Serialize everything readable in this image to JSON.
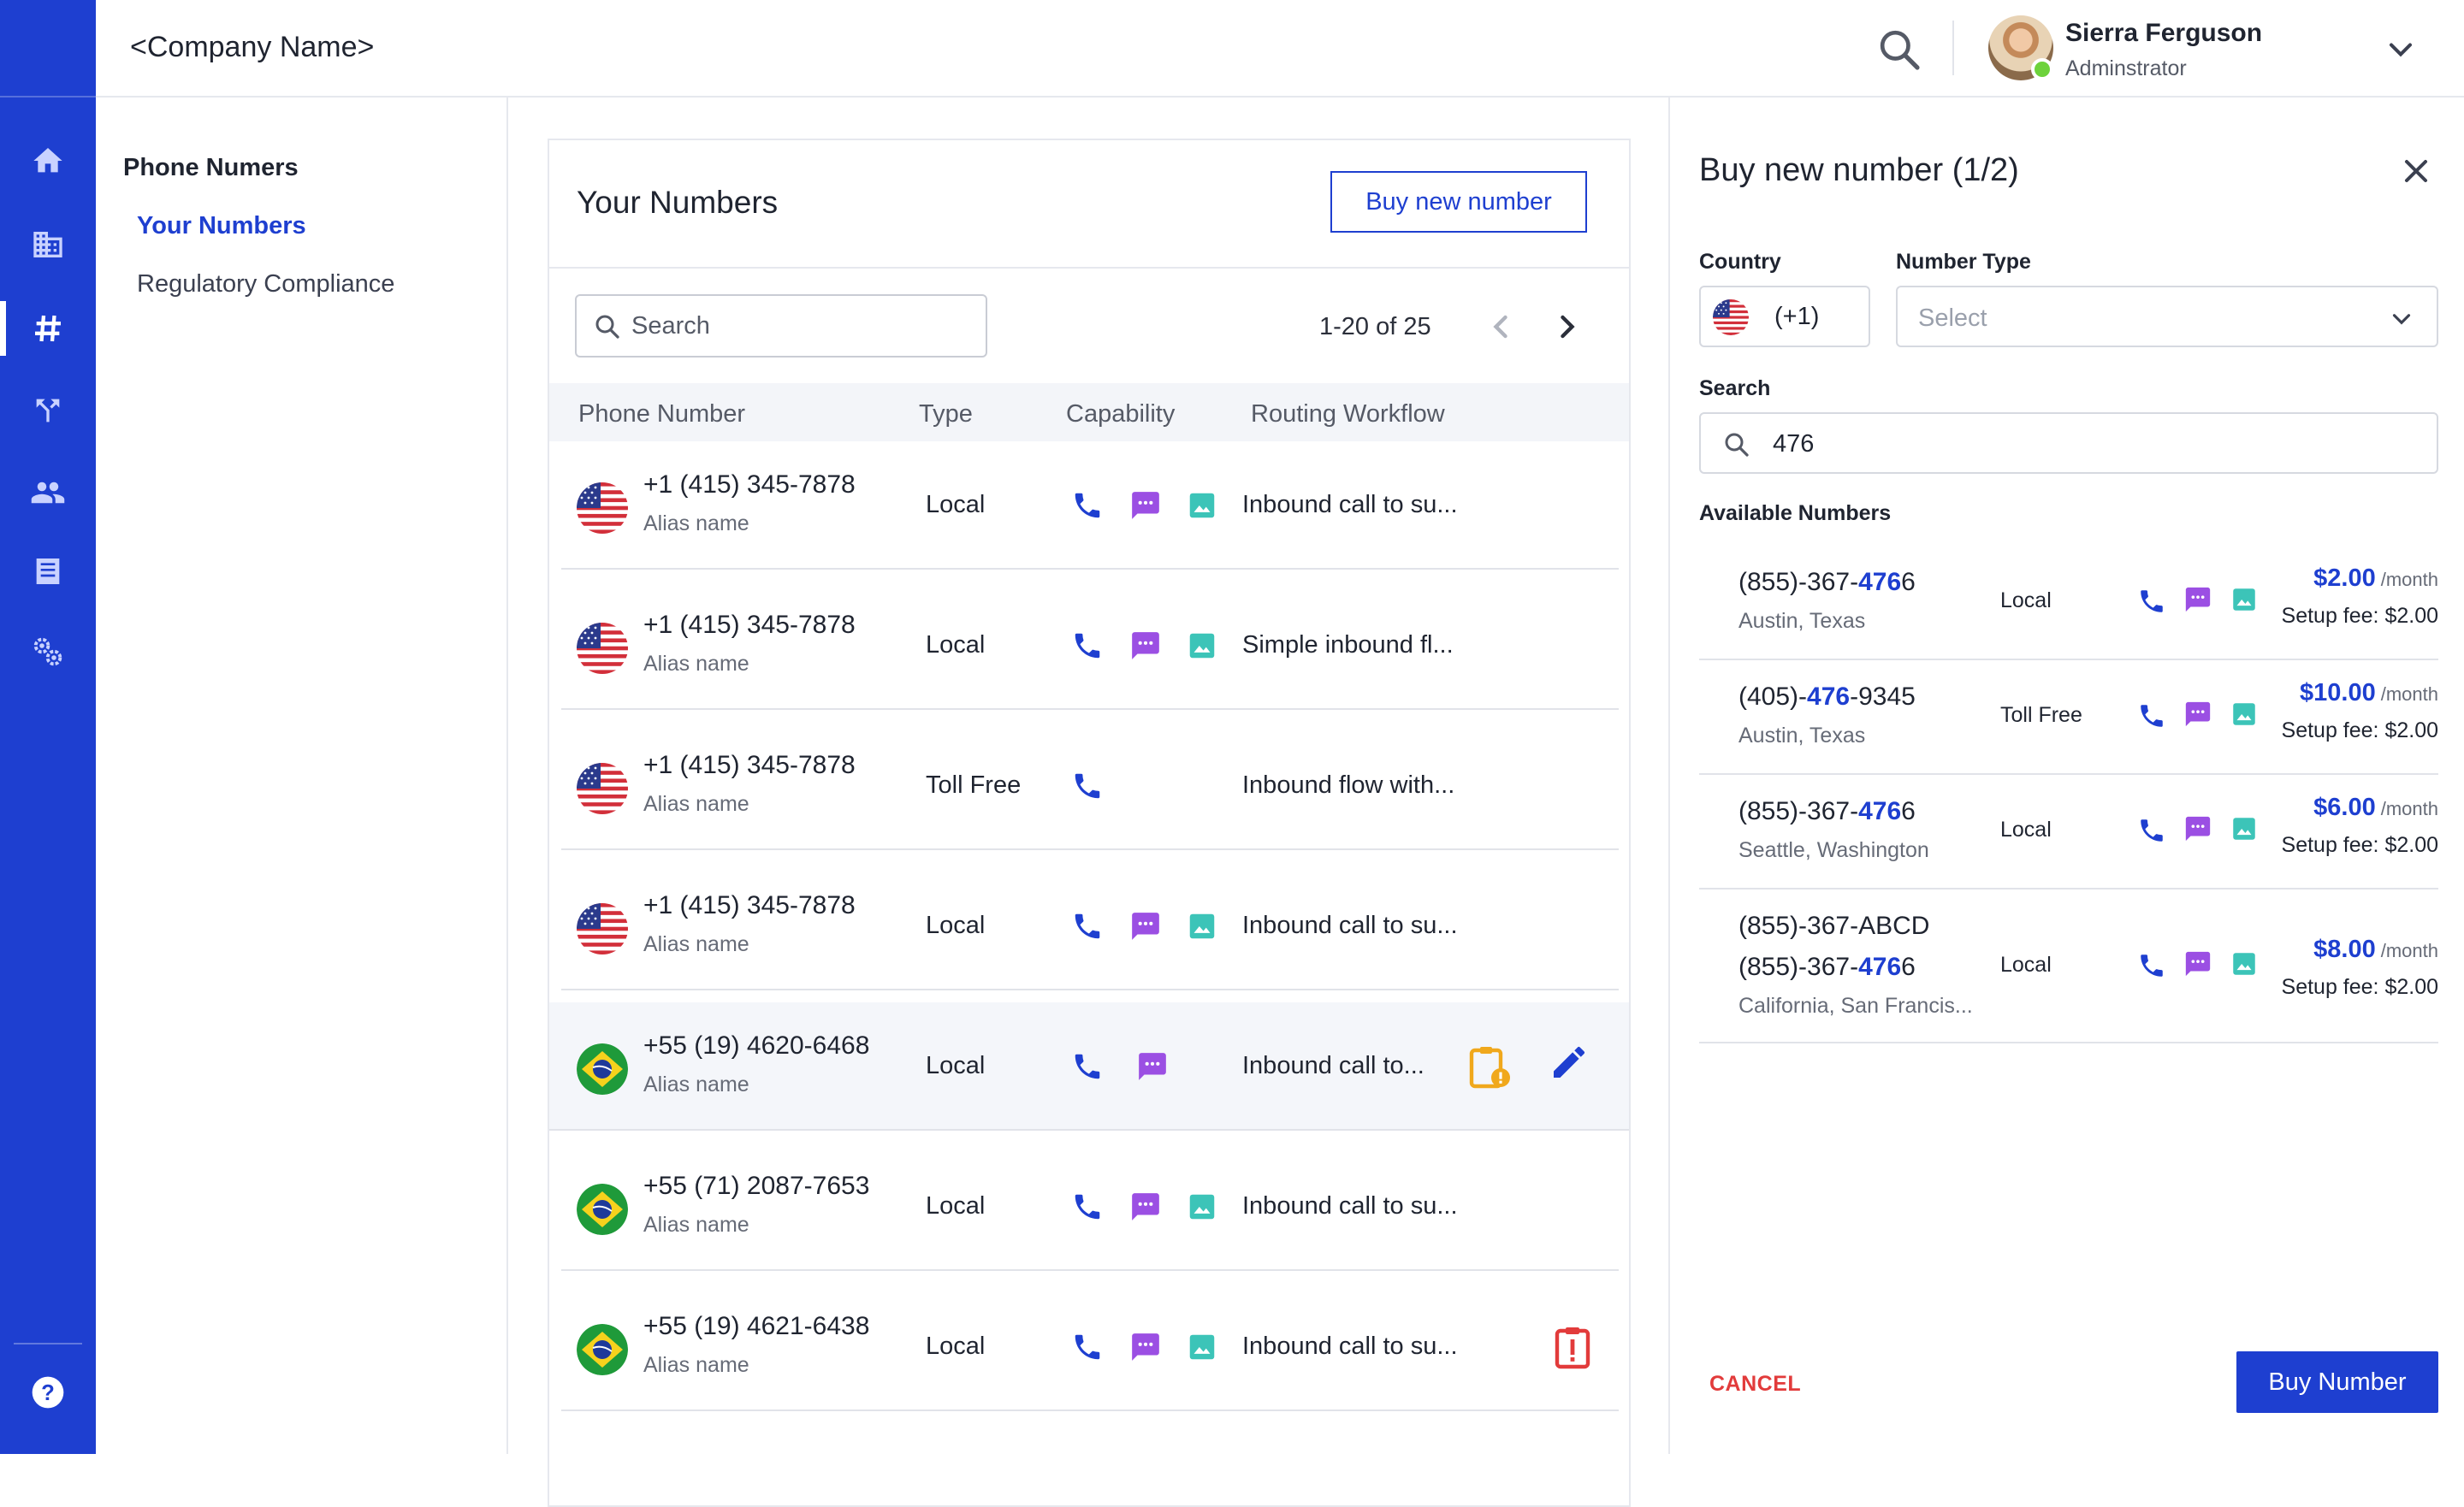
{
  "app": {
    "company_name": "<Company Name>"
  },
  "user": {
    "name": "Sierra Ferguson",
    "role": "Adminstrator"
  },
  "rail": {
    "items": [
      {
        "icon": "home-icon"
      },
      {
        "icon": "building-icon"
      },
      {
        "icon": "hash-icon",
        "active": true
      },
      {
        "icon": "routing-icon"
      },
      {
        "icon": "people-icon"
      },
      {
        "icon": "list-icon"
      },
      {
        "icon": "settings-icon"
      }
    ],
    "help_icon": "help-icon"
  },
  "subnav": {
    "title": "Phone Numers",
    "items": [
      {
        "label": "Your Numbers",
        "active": true
      },
      {
        "label": "Regulatory Compliance"
      }
    ]
  },
  "numbers": {
    "title": "Your Numbers",
    "buy_button": "Buy new number",
    "search_placeholder": "Search",
    "pagination": "1-20 of 25",
    "columns": [
      "Phone Number",
      "Type",
      "Capability",
      "Routing Workflow"
    ],
    "rows": [
      {
        "flag": "us",
        "number": "+1 (415) 345-7878",
        "alias": "Alias name",
        "type": "Local",
        "caps": [
          "voice",
          "sms",
          "mms"
        ],
        "workflow": "Inbound call to su...",
        "status": null
      },
      {
        "flag": "us",
        "number": "+1 (415) 345-7878",
        "alias": "Alias name",
        "type": "Local",
        "caps": [
          "voice",
          "sms",
          "mms"
        ],
        "workflow": "Simple inbound fl...",
        "status": null
      },
      {
        "flag": "us",
        "number": "+1 (415) 345-7878",
        "alias": "Alias name",
        "type": "Toll Free",
        "caps": [
          "voice"
        ],
        "workflow": "Inbound flow with...",
        "status": null
      },
      {
        "flag": "us",
        "number": "+1 (415) 345-7878",
        "alias": "Alias name",
        "type": "Local",
        "caps": [
          "voice",
          "sms",
          "mms"
        ],
        "workflow": "Inbound call to su...",
        "status": null
      },
      {
        "flag": "br",
        "number": "+55 (19) 4620-6468",
        "alias": "Alias name",
        "type": "Local",
        "caps": [
          "voice",
          "sms"
        ],
        "workflow": "Inbound call to...",
        "status": "pending"
      },
      {
        "flag": "br",
        "number": "+55 (71) 2087-7653",
        "alias": "Alias name",
        "type": "Local",
        "caps": [
          "voice",
          "sms",
          "mms"
        ],
        "workflow": "Inbound call to su...",
        "status": null
      },
      {
        "flag": "br",
        "number": "+55 (19) 4621-6438",
        "alias": "Alias name",
        "type": "Local",
        "caps": [
          "voice",
          "sms",
          "mms"
        ],
        "workflow": "Inbound call to su...",
        "status": "alert"
      }
    ]
  },
  "panel": {
    "title": "Buy new number (1/2)",
    "country_label": "Country",
    "country_code": "(+1)",
    "number_type_label": "Number Type",
    "number_type_placeholder": "Select",
    "search_label": "Search",
    "search_value": "476",
    "available_label": "Available Numbers",
    "available": [
      {
        "parts": [
          "(855)-367-",
          "476",
          "6"
        ],
        "location": "Austin, Texas",
        "type": "Local",
        "price": "$2.00",
        "per": "/month",
        "fee": "Setup fee: $2.00"
      },
      {
        "parts": [
          "(405)-",
          "476",
          "-9345"
        ],
        "location": "Austin, Texas",
        "type": "Toll Free",
        "price": "$10.00",
        "per": "/month",
        "fee": "Setup fee: $2.00"
      },
      {
        "parts": [
          "(855)-367-",
          "476",
          "6"
        ],
        "location": "Seattle, Washington",
        "type": "Local",
        "price": "$6.00",
        "per": "/month",
        "fee": "Setup fee: $2.00"
      },
      {
        "line1": "(855)-367-ABCD",
        "parts": [
          "(855)-367-",
          "476",
          "6"
        ],
        "location": "California, San Francis...",
        "type": "Local",
        "price": "$8.00",
        "per": "/month",
        "fee": "Setup fee: $2.00"
      }
    ],
    "cancel_label": "CANCEL",
    "buy_label": "Buy Number"
  },
  "colors": {
    "brand": "#1e3fd0",
    "sms": "#9b4fe3",
    "mms": "#3cc4b8",
    "warning": "#f0a81c",
    "danger": "#e23b3b"
  }
}
